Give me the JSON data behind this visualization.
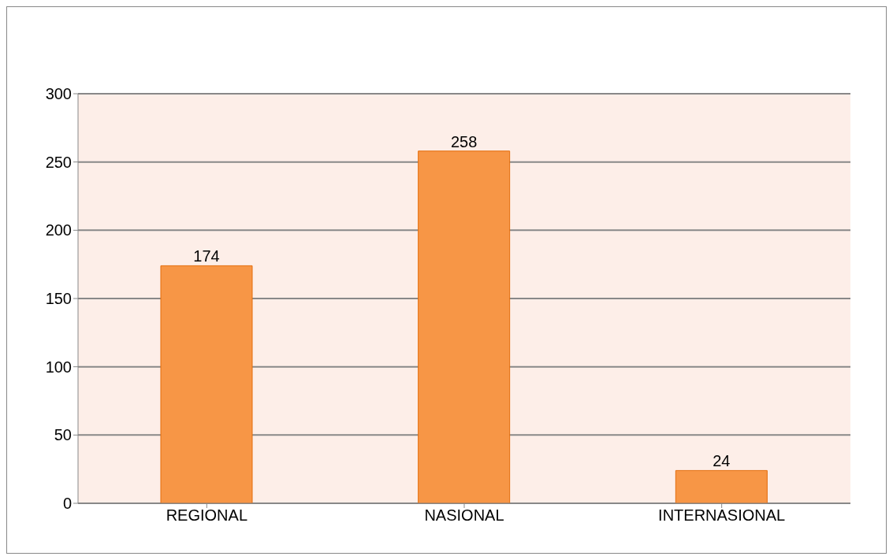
{
  "chart_data": {
    "type": "bar",
    "categories": [
      "REGIONAL",
      "NASIONAL",
      "INTERNASIONAL"
    ],
    "values": [
      174,
      258,
      24
    ],
    "color": "#f79646",
    "ylim": [
      0,
      300
    ],
    "yticks": [
      0,
      50,
      100,
      150,
      200,
      250,
      300
    ],
    "grid": "y",
    "data_labels": true
  }
}
